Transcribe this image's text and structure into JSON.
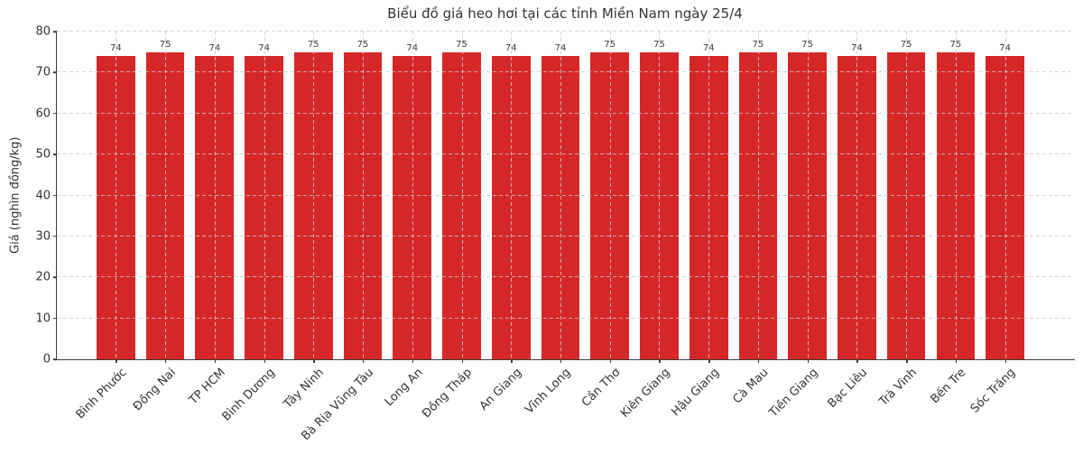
{
  "chart_data": {
    "type": "bar",
    "title": "Biểu đồ giá heo hơi tại các tỉnh Miền Nam ngày 25/4",
    "xlabel": "",
    "ylabel": "Giá (nghìn đồng/kg)",
    "ylim": [
      0,
      80
    ],
    "yticks": [
      0,
      10,
      20,
      30,
      40,
      50,
      60,
      70,
      80
    ],
    "grid": "dashed, both axes, drawn above bars",
    "legend_position": "none",
    "bar_color": "#d62728",
    "spine_color": "#3a3a3a",
    "grid_color": "#c9c9c9",
    "value_labels_shown": true,
    "categories": [
      "Bình Phước",
      "Đồng Nai",
      "TP HCM",
      "Bình Dương",
      "Tây Ninh",
      "Bà Rịa Vũng Tàu",
      "Long An",
      "Đồng Tháp",
      "An Giang",
      "Vĩnh Long",
      "Cần Thơ",
      "Kiên Giang",
      "Hậu Giang",
      "Cà Mau",
      "Tiền Giang",
      "Bạc Liêu",
      "Trà Vinh",
      "Bến Tre",
      "Sóc Trăng"
    ],
    "values": [
      74,
      75,
      74,
      74,
      75,
      75,
      74,
      75,
      74,
      74,
      75,
      75,
      74,
      75,
      75,
      74,
      75,
      75,
      74
    ]
  }
}
